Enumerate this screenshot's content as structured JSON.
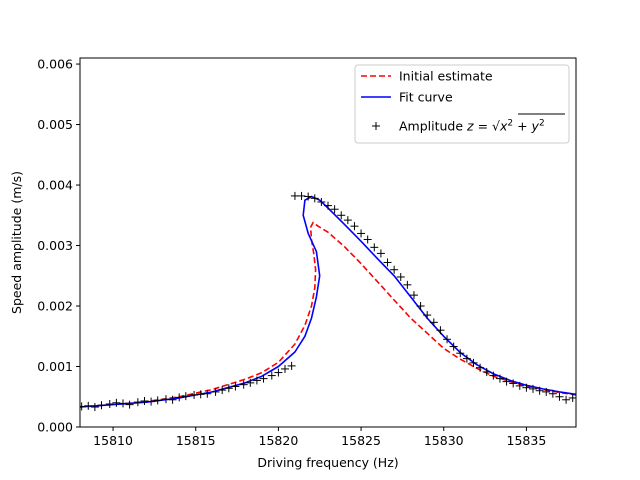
{
  "chart_data": {
    "type": "line",
    "title": "",
    "xlabel": "Driving frequency (Hz)",
    "ylabel": "Speed amplitude (m/s)",
    "xlim": [
      15808,
      15838
    ],
    "ylim": [
      0,
      0.0061
    ],
    "xticks": [
      15810,
      15815,
      15820,
      15825,
      15830,
      15835
    ],
    "xtick_labels": [
      "15810",
      "15815",
      "15820",
      "15825",
      "15830",
      "15835"
    ],
    "yticks": [
      0,
      0.001,
      0.002,
      0.003,
      0.004,
      0.005,
      0.006
    ],
    "ytick_labels": [
      "0.000",
      "0.001",
      "0.002",
      "0.003",
      "0.004",
      "0.005",
      "0.006"
    ],
    "grid": false,
    "legend_position": "top-right",
    "legend": [
      {
        "label": "Initial estimate",
        "style": "dashed",
        "color": "#ff0000"
      },
      {
        "label": "Fit curve",
        "style": "solid",
        "color": "#0000ff"
      },
      {
        "label": "Amplitude ",
        "math": "z = √(x² + y²)",
        "style": "marker",
        "color": "#000000"
      }
    ],
    "series": [
      {
        "name": "Initial estimate",
        "kind": "line",
        "dash": true,
        "color": "#ff0000",
        "points": [
          [
            15808,
            0.00033
          ],
          [
            15810,
            0.00037
          ],
          [
            15812,
            0.00042
          ],
          [
            15814,
            0.0005
          ],
          [
            15816,
            0.00062
          ],
          [
            15818,
            0.00079
          ],
          [
            15819,
            0.0009
          ],
          [
            15820,
            0.00107
          ],
          [
            15821,
            0.00137
          ],
          [
            15821.6,
            0.00168
          ],
          [
            15822.0,
            0.002
          ],
          [
            15822.2,
            0.0023
          ],
          [
            15822.25,
            0.0026
          ],
          [
            15822.15,
            0.00285
          ],
          [
            15822.0,
            0.0031
          ],
          [
            15821.95,
            0.0033
          ],
          [
            15822.1,
            0.00338
          ],
          [
            15822.4,
            0.00332
          ],
          [
            15823,
            0.00322
          ],
          [
            15824,
            0.00298
          ],
          [
            15825,
            0.0027
          ],
          [
            15826,
            0.0024
          ],
          [
            15827,
            0.0021
          ],
          [
            15828,
            0.0018
          ],
          [
            15829,
            0.00155
          ],
          [
            15830,
            0.0013
          ],
          [
            15831,
            0.00112
          ],
          [
            15832,
            0.00097
          ],
          [
            15833,
            0.00084
          ],
          [
            15834,
            0.00075
          ],
          [
            15835,
            0.00068
          ],
          [
            15836,
            0.00062
          ],
          [
            15837,
            0.00057
          ],
          [
            15838,
            0.00053
          ]
        ]
      },
      {
        "name": "Fit curve",
        "kind": "line",
        "dash": false,
        "color": "#0000ff",
        "points": [
          [
            15808,
            0.00033
          ],
          [
            15810,
            0.00037
          ],
          [
            15812,
            0.00041
          ],
          [
            15814,
            0.00048
          ],
          [
            15816,
            0.00058
          ],
          [
            15818,
            0.00073
          ],
          [
            15819,
            0.00084
          ],
          [
            15820,
            0.001
          ],
          [
            15821,
            0.00124
          ],
          [
            15821.6,
            0.0015
          ],
          [
            15822.0,
            0.0018
          ],
          [
            15822.3,
            0.00215
          ],
          [
            15822.5,
            0.0025
          ],
          [
            15822.3,
            0.0029
          ],
          [
            15821.8,
            0.0032
          ],
          [
            15821.5,
            0.0035
          ],
          [
            15821.6,
            0.00375
          ],
          [
            15822.0,
            0.00381
          ],
          [
            15822.5,
            0.00375
          ],
          [
            15823,
            0.00362
          ],
          [
            15824,
            0.00335
          ],
          [
            15825,
            0.00307
          ],
          [
            15826,
            0.00278
          ],
          [
            15827,
            0.0025
          ],
          [
            15828,
            0.00215
          ],
          [
            15829,
            0.0018
          ],
          [
            15830,
            0.0015
          ],
          [
            15831,
            0.00123
          ],
          [
            15832,
            0.00103
          ],
          [
            15833,
            0.00088
          ],
          [
            15834,
            0.00077
          ],
          [
            15835,
            0.00069
          ],
          [
            15836,
            0.00063
          ],
          [
            15837,
            0.00058
          ],
          [
            15838,
            0.00054
          ]
        ]
      },
      {
        "name": "Amplitude",
        "kind": "scatter",
        "marker": "+",
        "color": "#000000",
        "points": [
          [
            15808.1,
            0.00034
          ],
          [
            15808.5,
            0.00035
          ],
          [
            15808.9,
            0.00033
          ],
          [
            15809.3,
            0.00036
          ],
          [
            15809.8,
            0.00038
          ],
          [
            15810.2,
            0.0004
          ],
          [
            15810.6,
            0.00039
          ],
          [
            15811.0,
            0.00037
          ],
          [
            15811.5,
            0.00041
          ],
          [
            15811.9,
            0.00043
          ],
          [
            15812.3,
            0.00042
          ],
          [
            15812.7,
            0.00044
          ],
          [
            15813.2,
            0.00046
          ],
          [
            15813.6,
            0.00045
          ],
          [
            15814.0,
            0.00049
          ],
          [
            15814.4,
            0.00051
          ],
          [
            15814.9,
            0.00053
          ],
          [
            15815.3,
            0.00054
          ],
          [
            15815.7,
            0.00055
          ],
          [
            15816.2,
            0.00058
          ],
          [
            15816.6,
            0.00061
          ],
          [
            15817.0,
            0.00064
          ],
          [
            15817.4,
            0.00067
          ],
          [
            15817.9,
            0.0007
          ],
          [
            15818.3,
            0.00073
          ],
          [
            15818.7,
            0.00077
          ],
          [
            15819.1,
            0.0008
          ],
          [
            15819.6,
            0.00085
          ],
          [
            15820.0,
            0.0009
          ],
          [
            15820.4,
            0.00096
          ],
          [
            15820.8,
            0.00101
          ],
          [
            15821.0,
            0.00382
          ],
          [
            15821.4,
            0.00382
          ],
          [
            15821.8,
            0.00381
          ],
          [
            15822.2,
            0.00378
          ],
          [
            15822.6,
            0.00372
          ],
          [
            15823.0,
            0.00366
          ],
          [
            15823.4,
            0.0036
          ],
          [
            15823.8,
            0.0035
          ],
          [
            15824.2,
            0.00342
          ],
          [
            15824.6,
            0.00332
          ],
          [
            15825.0,
            0.0032
          ],
          [
            15825.4,
            0.0031
          ],
          [
            15825.8,
            0.00297
          ],
          [
            15826.2,
            0.00287
          ],
          [
            15826.6,
            0.00272
          ],
          [
            15827.0,
            0.0026
          ],
          [
            15827.4,
            0.00248
          ],
          [
            15827.8,
            0.00235
          ],
          [
            15828.2,
            0.00218
          ],
          [
            15828.6,
            0.002
          ],
          [
            15829.0,
            0.00185
          ],
          [
            15829.4,
            0.00173
          ],
          [
            15829.8,
            0.0016
          ],
          [
            15830.2,
            0.00145
          ],
          [
            15830.6,
            0.00133
          ],
          [
            15831.0,
            0.00122
          ],
          [
            15831.4,
            0.00113
          ],
          [
            15831.8,
            0.00106
          ],
          [
            15832.2,
            0.00098
          ],
          [
            15832.6,
            0.00091
          ],
          [
            15833.0,
            0.00085
          ],
          [
            15833.4,
            0.0008
          ],
          [
            15833.8,
            0.00075
          ],
          [
            15834.2,
            0.00072
          ],
          [
            15834.6,
            0.00068
          ],
          [
            15835.0,
            0.00065
          ],
          [
            15835.4,
            0.00063
          ],
          [
            15835.8,
            0.0006
          ],
          [
            15836.2,
            0.00058
          ],
          [
            15836.6,
            0.00055
          ],
          [
            15837.0,
            0.0005
          ],
          [
            15837.4,
            0.00045
          ],
          [
            15837.8,
            0.00048
          ]
        ]
      }
    ]
  }
}
